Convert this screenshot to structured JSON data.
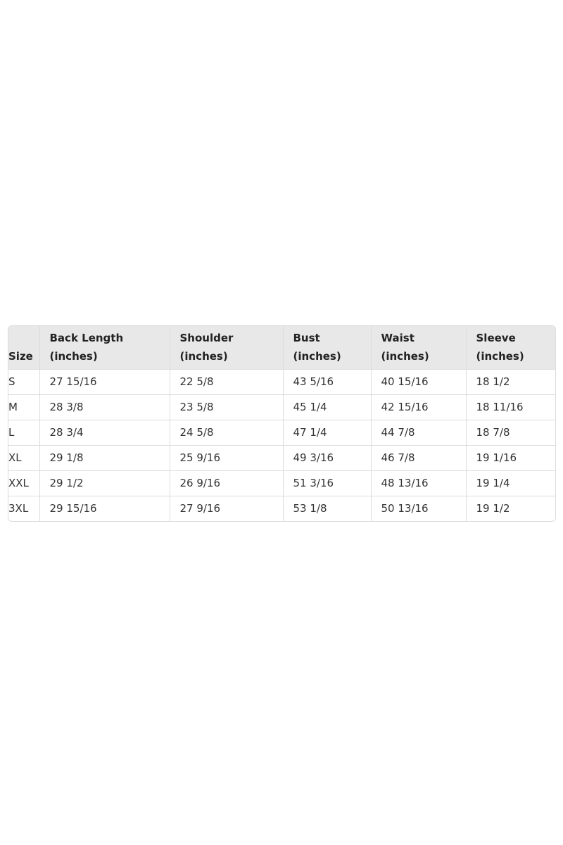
{
  "table": {
    "headers": [
      {
        "line1": "Size",
        "line2": ""
      },
      {
        "line1": "Back Length",
        "line2": "(inches)"
      },
      {
        "line1": "Shoulder",
        "line2": "(inches)"
      },
      {
        "line1": "Bust",
        "line2": "(inches)"
      },
      {
        "line1": "Waist",
        "line2": "(inches)"
      },
      {
        "line1": "Sleeve",
        "line2": "(inches)"
      }
    ],
    "rows": [
      [
        "S",
        "27 15/16",
        "22 5/8",
        "43 5/16",
        "40 15/16",
        "18 1/2"
      ],
      [
        "M",
        "28 3/8",
        "23 5/8",
        "45 1/4",
        "42 15/16",
        "18 11/16"
      ],
      [
        "L",
        "28 3/4",
        "24 5/8",
        "47 1/4",
        "44 7/8",
        "18 7/8"
      ],
      [
        "XL",
        "29 1/8",
        "25 9/16",
        "49 3/16",
        "46 7/8",
        "19 1/16"
      ],
      [
        "XXL",
        "29 1/2",
        "26 9/16",
        "51 3/16",
        "48 13/16",
        "19 1/4"
      ],
      [
        "3XL",
        "29 15/16",
        "27 9/16",
        "53 1/8",
        "50 13/16",
        "19 1/2"
      ]
    ]
  }
}
